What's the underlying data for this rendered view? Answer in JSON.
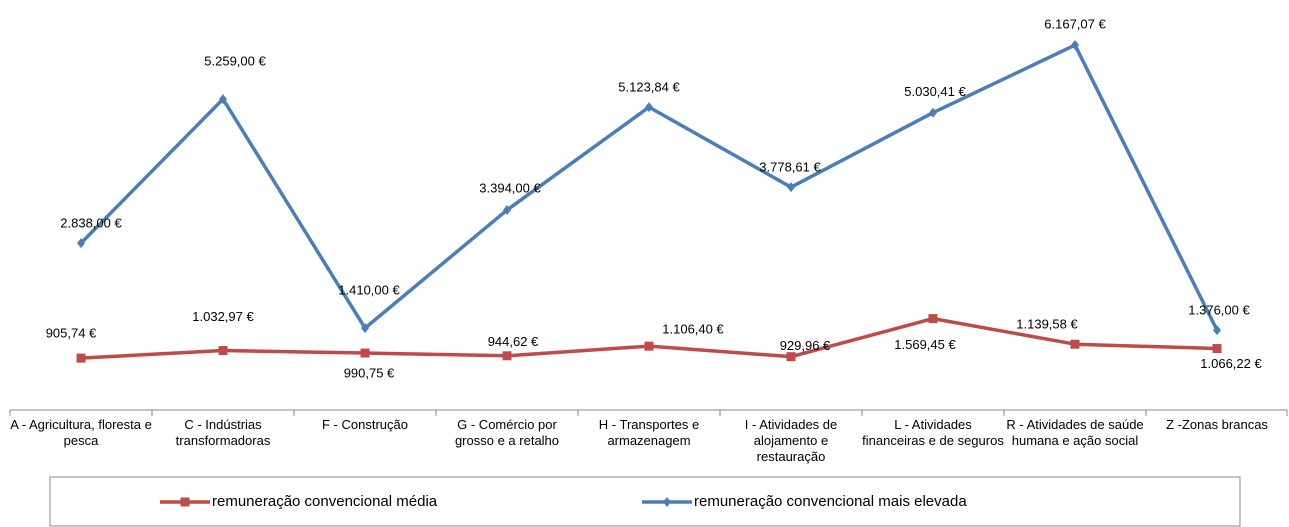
{
  "chart_data": {
    "type": "line",
    "categories": [
      "A - Agricultura, floresta e pesca",
      "C - Indústrias transformadoras",
      "F - Construção",
      "G - Comércio por grosso e a retalho",
      "H - Transportes e armazenagem",
      "I - Atividades de alojamento e restauração",
      "L - Atividades financeiras e de seguros",
      "R - Atividades de saúde humana e ação social",
      "Z -Zonas brancas"
    ],
    "series": [
      {
        "name": "remuneração convencional média",
        "color": "#be4b48",
        "marker": "square",
        "values": [
          905.74,
          1032.97,
          990.75,
          944.62,
          1106.4,
          929.96,
          1569.45,
          1139.58,
          1066.22
        ],
        "value_labels": [
          "905,74 €",
          "1.032,97 €",
          "990,75 €",
          "944,62 €",
          "1.106,40 €",
          "929,96 €",
          "1.569,45 €",
          "1.139,58 €",
          "1.066,22 €"
        ]
      },
      {
        "name": "remuneração convencional mais elevada",
        "color": "#4a7ebb",
        "marker": "diamond",
        "values": [
          2838.0,
          5259.0,
          1410.0,
          3394.0,
          5123.84,
          3778.61,
          5030.41,
          6167.07,
          1376.0
        ],
        "value_labels": [
          "2.838,00 €",
          "5.259,00 €",
          "1.410,00 €",
          "3.394,00 €",
          "5.123,84 €",
          "3.778,61 €",
          "5.030,41 €",
          "6.167,07 €",
          "1.376,00 €"
        ]
      }
    ],
    "ylim": [
      0,
      7000
    ],
    "grid": false,
    "legend": "bottom"
  }
}
